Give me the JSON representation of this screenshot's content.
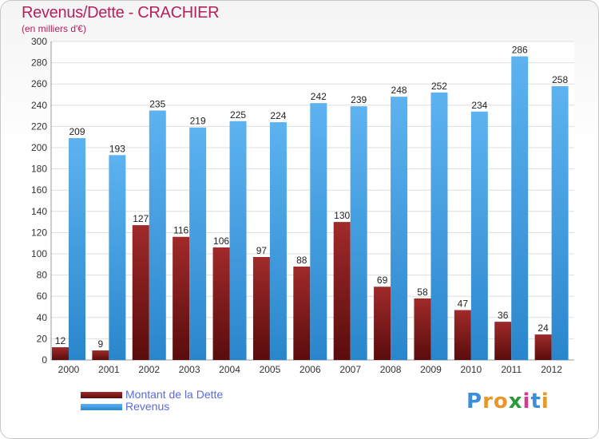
{
  "chart_data": {
    "type": "bar",
    "title": "Revenus/Dette - CRACHIER",
    "subtitle": "(en milliers d'€)",
    "categories": [
      "2000",
      "2001",
      "2002",
      "2003",
      "2004",
      "2005",
      "2006",
      "2007",
      "2008",
      "2009",
      "2010",
      "2011",
      "2012"
    ],
    "series": [
      {
        "name": "Montant de la Dette",
        "values": [
          12,
          9,
          127,
          116,
          106,
          97,
          88,
          130,
          69,
          58,
          47,
          36,
          24
        ],
        "color": "#7a1a1a"
      },
      {
        "name": "Revenus",
        "values": [
          209,
          193,
          235,
          219,
          225,
          224,
          242,
          239,
          248,
          252,
          234,
          286,
          258
        ],
        "color": "#3a96dc"
      }
    ],
    "ylim": [
      0,
      300
    ],
    "yticks": [
      0,
      20,
      40,
      60,
      80,
      100,
      120,
      140,
      160,
      180,
      200,
      220,
      240,
      260,
      280,
      300
    ],
    "grid": true,
    "legend_position": "bottom-left"
  },
  "brand": {
    "text": "Proxiti",
    "letter_colors": [
      "#3a8fd8",
      "#e8962a",
      "#e8962a",
      "#2a9a3a",
      "#d83a8a",
      "#3a8fd8",
      "#e8962a"
    ]
  }
}
